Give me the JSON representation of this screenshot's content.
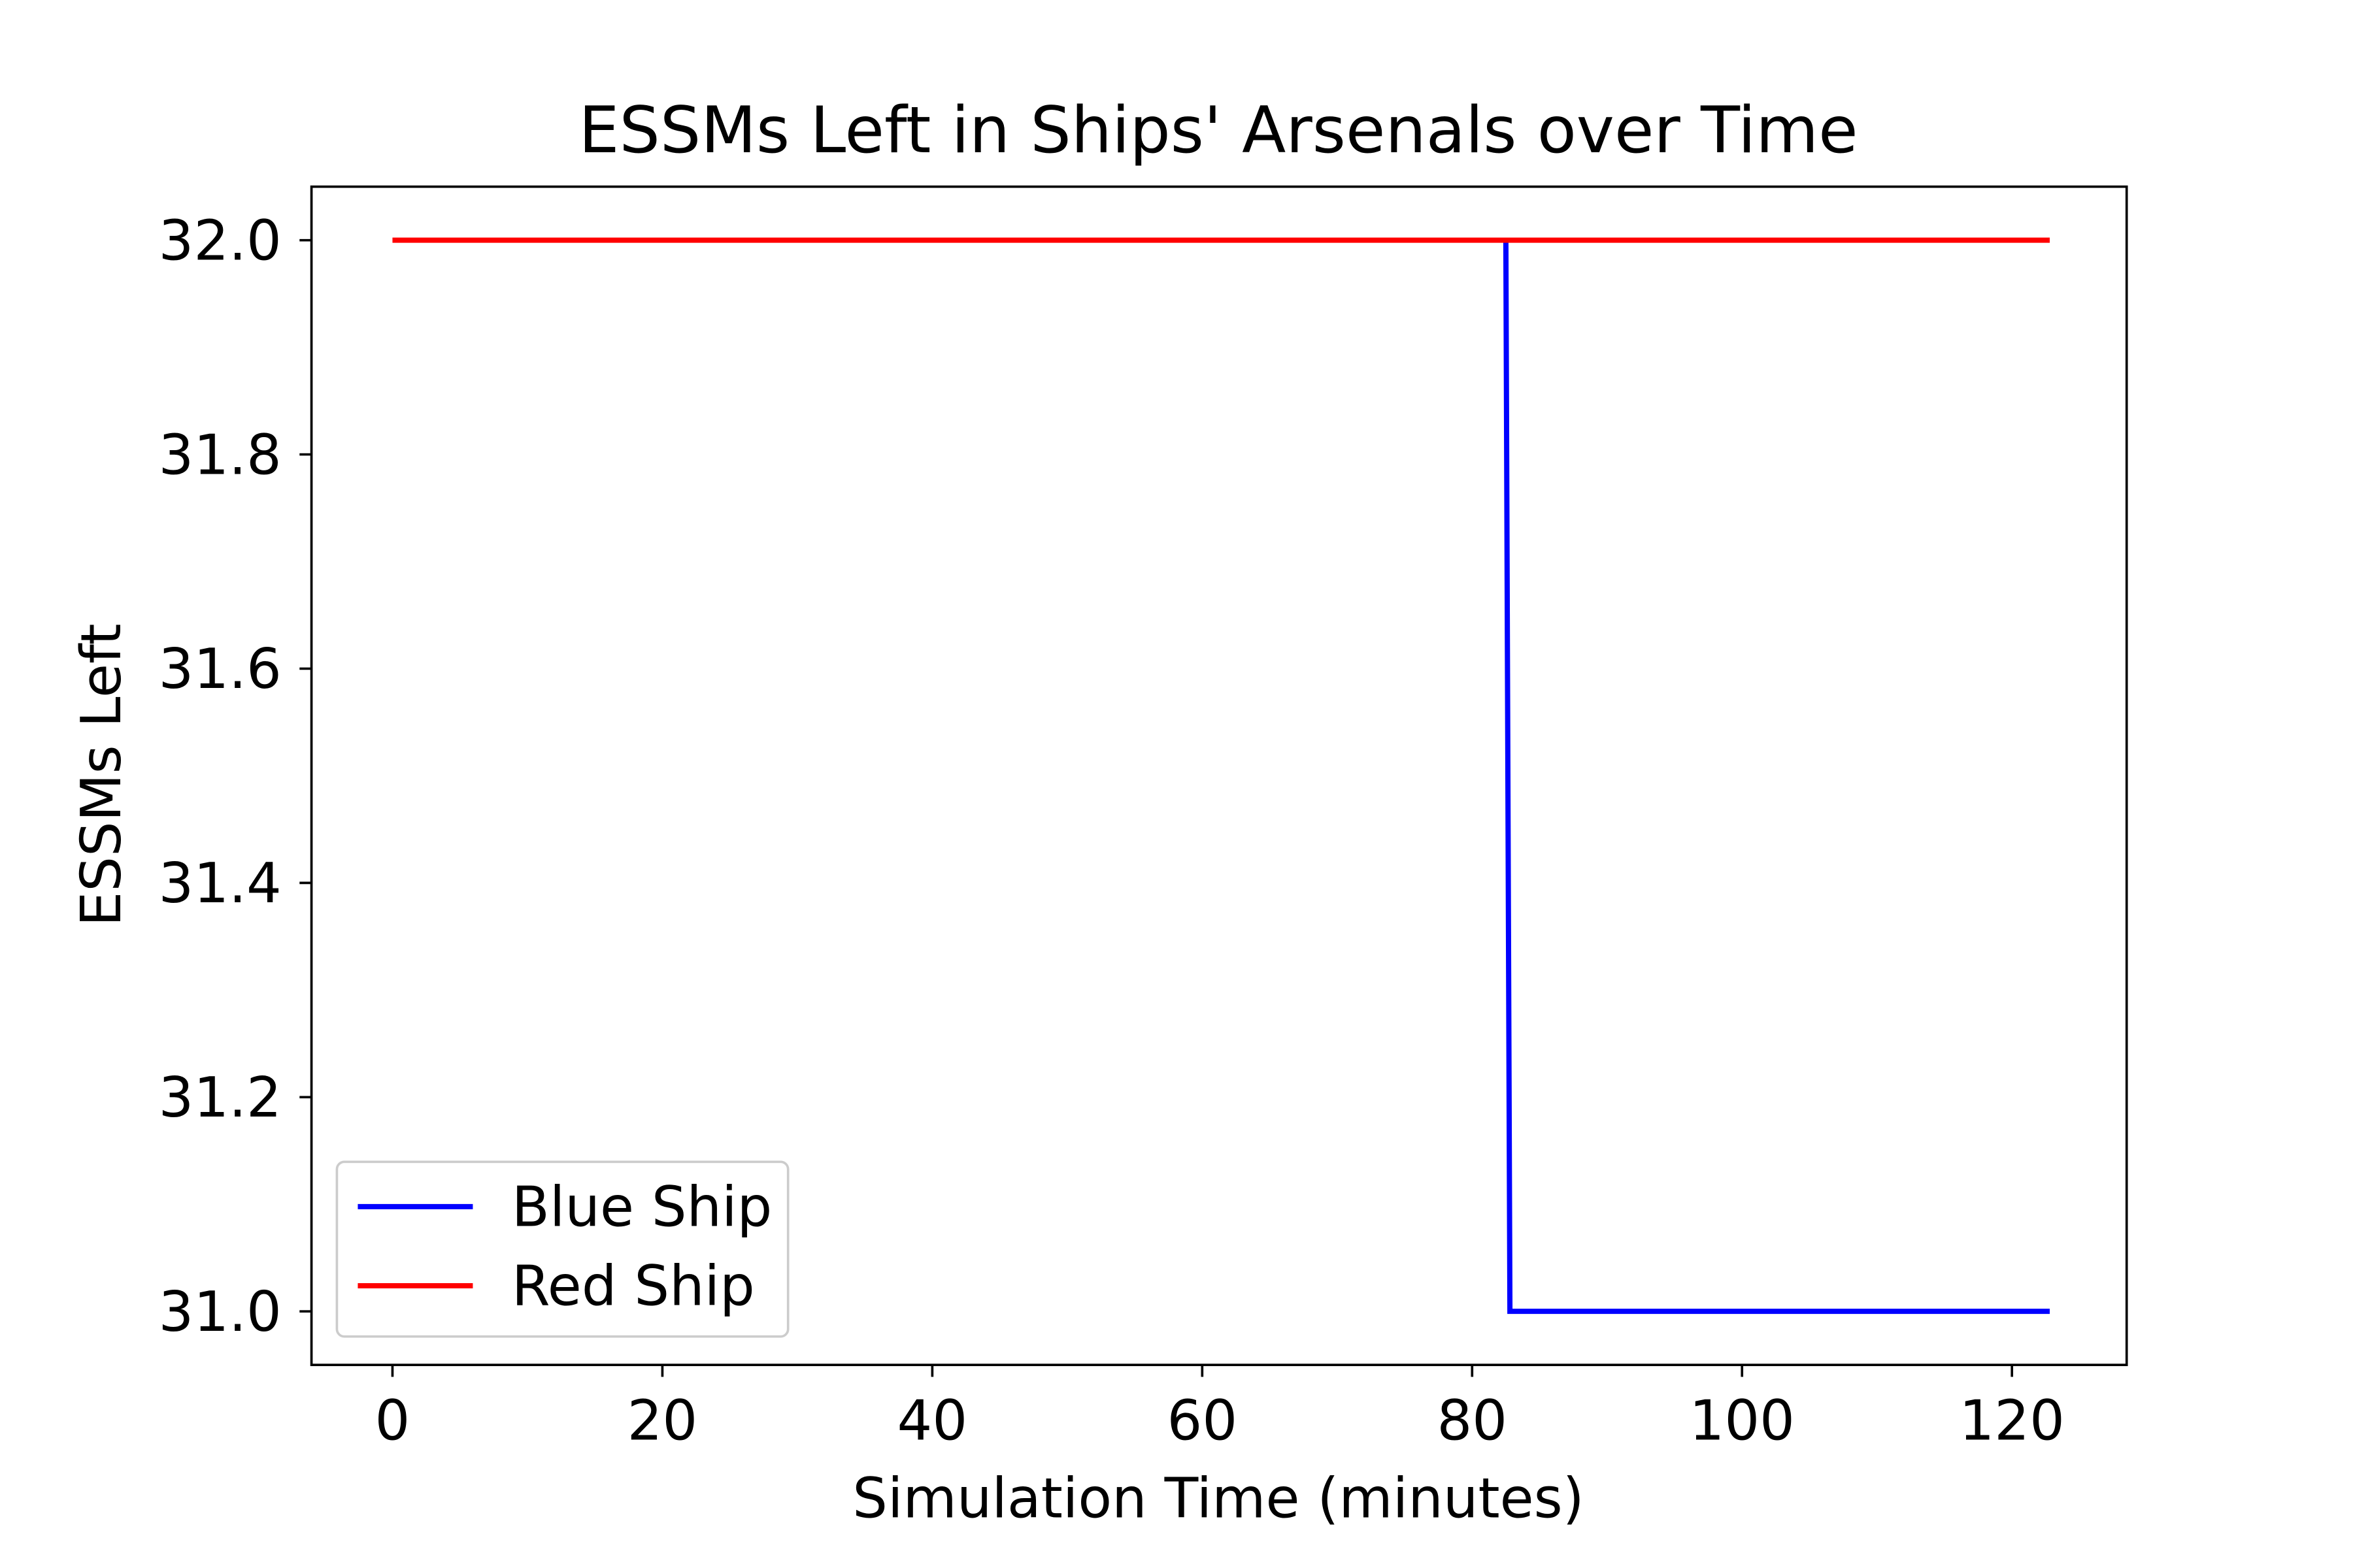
{
  "chart_data": {
    "type": "line",
    "title": "ESSMs Left in Ships' Arsenals over Time",
    "xlabel": "Simulation Time (minutes)",
    "ylabel": "ESSMs Left",
    "xlim": [
      -6,
      128.5
    ],
    "ylim": [
      30.95,
      32.05
    ],
    "xticks": [
      0,
      20,
      40,
      60,
      80,
      100,
      120
    ],
    "yticks": [
      31.0,
      31.2,
      31.4,
      31.6,
      31.8,
      32.0
    ],
    "ytick_labels": [
      "31.0",
      "31.2",
      "31.4",
      "31.6",
      "31.8",
      "32.0"
    ],
    "grid": false,
    "legend_position": "lower-left",
    "series": [
      {
        "name": "Blue Ship",
        "color": "#0000ff",
        "x": [
          82.5,
          82.8,
          122.8
        ],
        "y": [
          32.0,
          31.0,
          31.0
        ]
      },
      {
        "name": "Red Ship",
        "color": "#ff0000",
        "x": [
          0,
          122.8
        ],
        "y": [
          32.0,
          32.0
        ]
      }
    ]
  }
}
